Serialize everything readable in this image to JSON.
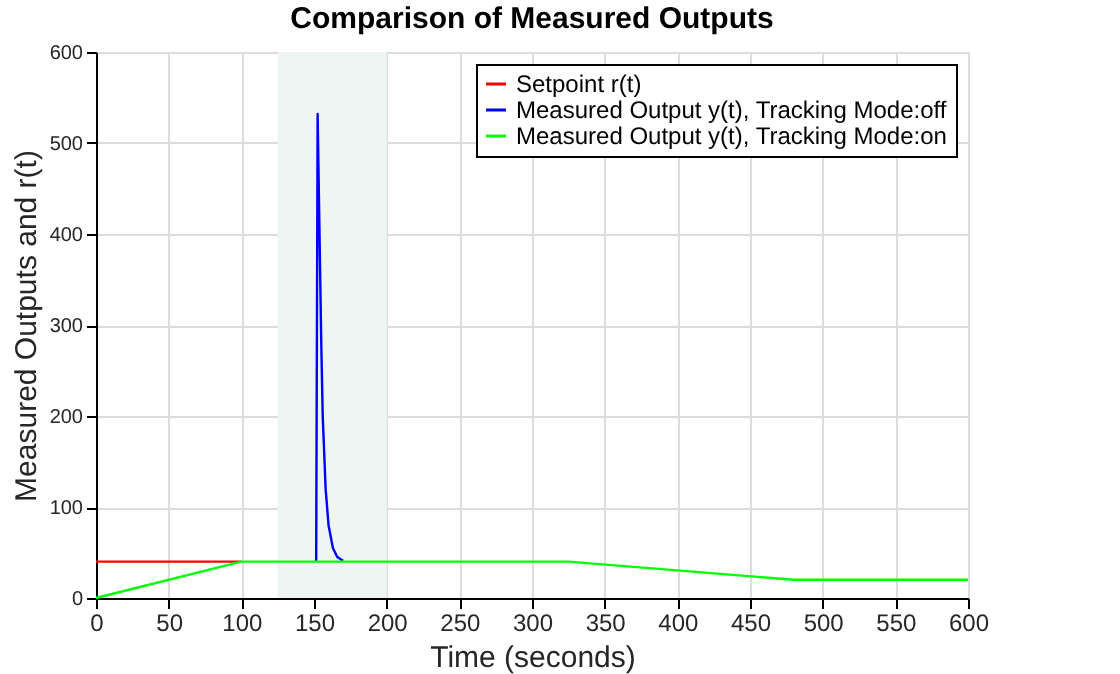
{
  "chart_data": {
    "type": "line",
    "title": "Comparison of Measured Outputs",
    "xlabel": "Time (seconds)",
    "ylabel": "Measured Outputs and r(t)",
    "xlim": [
      0,
      600
    ],
    "xticks": [
      0,
      50,
      100,
      150,
      200,
      250,
      300,
      350,
      400,
      450,
      500,
      550,
      600
    ],
    "ylim": [
      0,
      600
    ],
    "yticks": [
      0,
      100,
      200,
      300,
      400,
      500,
      600
    ],
    "grid": true,
    "legend": "top right",
    "line_style": "solid",
    "marker": "none",
    "bands": [
      {
        "axis": "x",
        "from": 125,
        "to": 200,
        "color": "#eef5f2"
      }
    ],
    "series": [
      {
        "name": "Setpoint r(t)",
        "color": "#ff0000",
        "x": [
          0,
          100
        ],
        "values": [
          40,
          40
        ]
      },
      {
        "name": "Measured Output y(t), Tracking Mode:off",
        "color": "#0000ff",
        "x": [
          151.5,
          152.5,
          153,
          154,
          155,
          156,
          158,
          160,
          163,
          166,
          170
        ],
        "values": [
          40,
          532,
          480,
          380,
          280,
          200,
          120,
          80,
          55,
          45,
          41
        ]
      },
      {
        "name": "Measured Output y(t), Tracking Mode:on",
        "color": "#00ff00",
        "x": [
          0,
          100,
          325,
          480,
          600
        ],
        "values": [
          0,
          40,
          40,
          20,
          20
        ]
      }
    ]
  }
}
